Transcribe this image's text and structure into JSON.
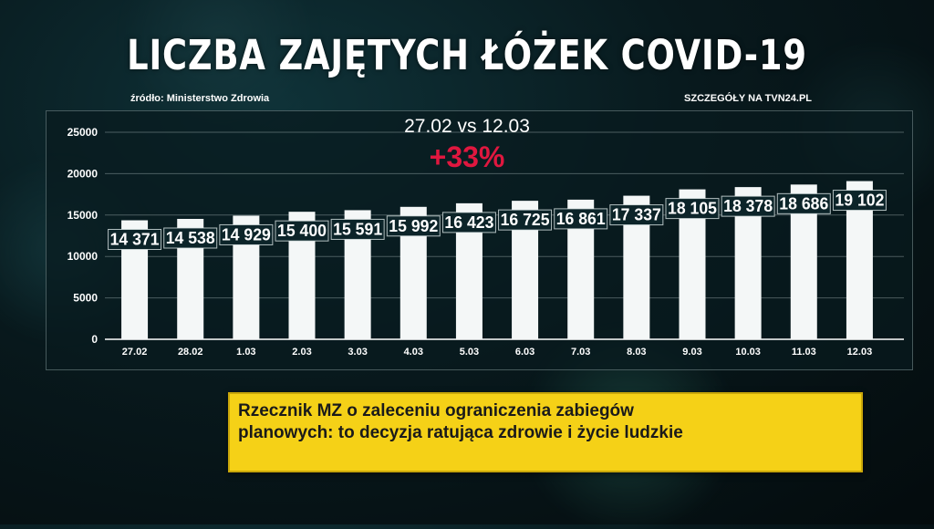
{
  "header": {
    "title": "LICZBA ZAJĘTYCH ŁÓŻEK COVID-19",
    "source": "źródło: Ministerstwo Zdrowia",
    "details": "SZCZEGÓŁY NA TVN24.PL"
  },
  "annotation": {
    "comparison": "27.02 vs 12.03",
    "change": "+33%",
    "change_color": "#e0173f"
  },
  "news": {
    "line1": "Rzecznik MZ o zaleceniu ograniczenia zabiegów",
    "line2": "planowych: to decyzja ratująca zdrowie i życie ludzkie",
    "background": "#f5d117"
  },
  "chart_data": {
    "type": "bar",
    "categories": [
      "27.02",
      "28.02",
      "1.03",
      "2.03",
      "3.03",
      "4.03",
      "5.03",
      "6.03",
      "7.03",
      "8.03",
      "9.03",
      "10.03",
      "11.03",
      "12.03"
    ],
    "values": [
      14371,
      14538,
      14929,
      15400,
      15591,
      15992,
      16423,
      16725,
      16861,
      17337,
      18105,
      18378,
      18686,
      19102
    ],
    "value_labels": [
      "14 371",
      "14 538",
      "14 929",
      "15 400",
      "15 591",
      "15 992",
      "16 423",
      "16 725",
      "16 861",
      "17 337",
      "18 105",
      "18 378",
      "18 686",
      "19 102"
    ],
    "yticks": [
      "0",
      "5000",
      "10000",
      "15000",
      "20000",
      "25000"
    ],
    "ylim": [
      0,
      25000
    ],
    "grid": true,
    "bar_color": "#f4f7f7"
  }
}
